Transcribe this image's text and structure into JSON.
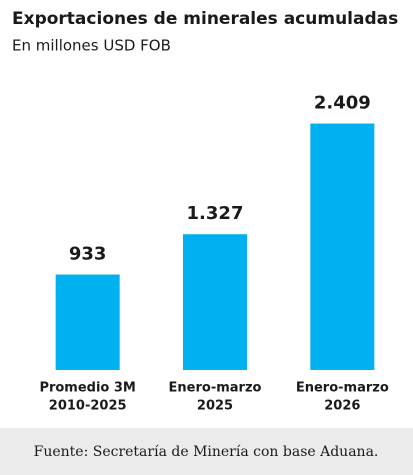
{
  "chart_data": {
    "type": "bar",
    "title": "Exportaciones de minerales acumuladas",
    "subtitle": "En millones USD FOB",
    "categories": [
      [
        "Promedio 3M",
        "2010-2025"
      ],
      [
        "Enero-marzo",
        "2025"
      ],
      [
        "Enero-marzo",
        "2026"
      ]
    ],
    "values": [
      933,
      1327,
      2409
    ],
    "value_labels": [
      "933",
      "1.327",
      "2.409"
    ],
    "color": "#00b0f0",
    "ylim": [
      0,
      2600
    ],
    "source": "Fuente: Secretaría de Minería con base Aduana."
  }
}
